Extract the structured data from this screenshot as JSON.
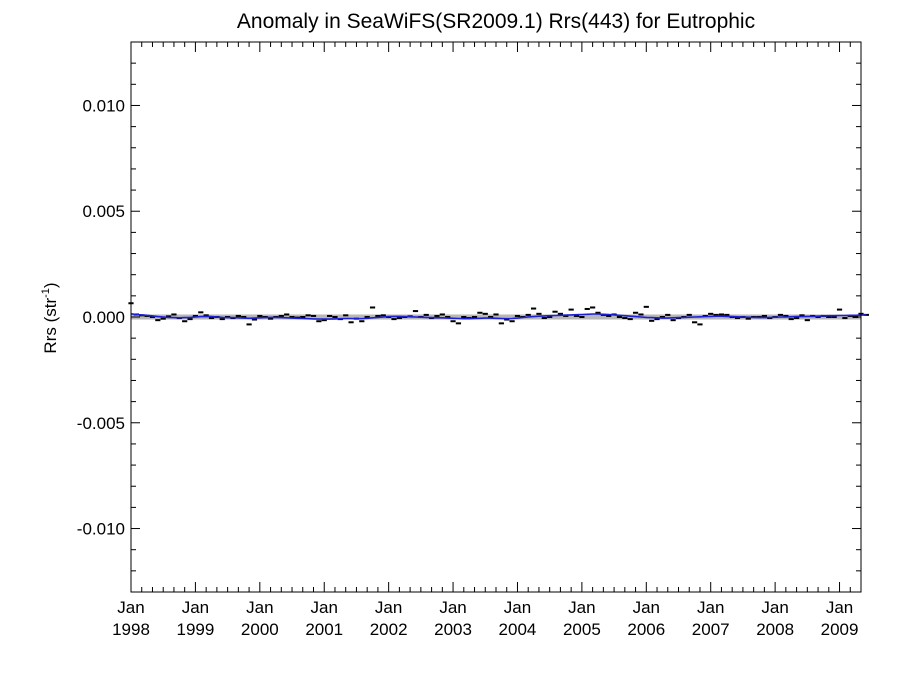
{
  "chart_data": {
    "type": "line",
    "title": "Anomaly in SeaWiFS(SR2009.1) Rrs(443) for Eutrophic",
    "ylabel_main": "Rrs (str",
    "ylabel_sup": "-1",
    "ylabel_close": ")",
    "xlabel": "",
    "ylim": [
      -0.013,
      0.013
    ],
    "xlim": [
      "1998-01",
      "2009-05"
    ],
    "yticks": [
      -0.01,
      -0.005,
      0.0,
      0.005,
      0.01
    ],
    "ytick_labels": [
      "-0.010",
      "-0.005",
      "0.000",
      "0.005",
      "0.010"
    ],
    "xtick_labels": [
      {
        "month": "Jan",
        "year": "1998"
      },
      {
        "month": "Jan",
        "year": "1999"
      },
      {
        "month": "Jan",
        "year": "2000"
      },
      {
        "month": "Jan",
        "year": "2001"
      },
      {
        "month": "Jan",
        "year": "2002"
      },
      {
        "month": "Jan",
        "year": "2003"
      },
      {
        "month": "Jan",
        "year": "2004"
      },
      {
        "month": "Jan",
        "year": "2005"
      },
      {
        "month": "Jan",
        "year": "2006"
      },
      {
        "month": "Jan",
        "year": "2007"
      },
      {
        "month": "Jan",
        "year": "2008"
      },
      {
        "month": "Jan",
        "year": "2009"
      }
    ],
    "grid": false,
    "zero_band": [
      -0.00012,
      0.00012
    ],
    "colors": {
      "monthly": "#000000",
      "smoothed": "#1f1fd6",
      "zero_band": "#b8b8b8"
    },
    "series": [
      {
        "style": "monthly-dashes",
        "start": "1998-01",
        "values": [
          0.00065,
          0.00012,
          8e-05,
          5e-05,
          0.0,
          -0.00015,
          -8e-05,
          3e-05,
          0.00012,
          -5e-05,
          -0.0002,
          -0.0001,
          5e-05,
          0.00022,
          8e-05,
          -5e-05,
          0.0,
          -0.0001,
          0.0,
          -5e-05,
          5e-05,
          0.0,
          -0.00035,
          -0.00012,
          5e-05,
          0.0,
          -8e-05,
          0.0,
          5e-05,
          0.00012,
          0.0,
          -3e-05,
          0.0,
          8e-05,
          5e-05,
          -0.0002,
          -0.00015,
          5e-05,
          0.0,
          -0.0001,
          8e-05,
          -0.00025,
          -8e-05,
          -0.0002,
          0.0,
          0.00045,
          5e-05,
          8e-05,
          0.0,
          -0.0001,
          -5e-05,
          0.0,
          3e-05,
          0.00028,
          0.0,
          0.0001,
          -5e-05,
          5e-05,
          0.00012,
          0.0,
          -0.0002,
          -0.0003,
          0.0,
          -5e-05,
          0.0,
          0.0002,
          0.00015,
          0.0,
          0.00012,
          -0.0003,
          -0.00012,
          -0.0002,
          5e-05,
          0.0,
          0.0001,
          0.0004,
          0.00015,
          -5e-05,
          0.0,
          0.00025,
          0.00015,
          5e-05,
          0.00035,
          5e-05,
          0.0,
          0.00038,
          0.00045,
          0.0002,
          0.0001,
          5e-05,
          0.00012,
          0.0,
          -5e-05,
          -0.0001,
          0.0002,
          0.00012,
          0.00048,
          -0.00018,
          -0.0001,
          0.0,
          0.0001,
          -0.00015,
          -5e-05,
          0.0,
          0.0001,
          -0.00025,
          -0.00035,
          5e-05,
          0.00015,
          0.0001,
          0.00012,
          0.0001,
          0.0,
          -5e-05,
          0.0,
          -8e-05,
          0.0,
          0.0,
          5e-05,
          -5e-05,
          0.0,
          0.0001,
          5e-05,
          -0.0001,
          -5e-05,
          8e-05,
          -0.00015,
          5e-05,
          0.0,
          5e-05,
          0.0,
          0.0,
          0.00035,
          -5e-05,
          5e-05,
          0.0,
          0.00015,
          0.0001
        ]
      },
      {
        "style": "smoothed-line",
        "start": "1998-01",
        "values": [
          0.00015,
          0.00012,
          0.0001,
          8e-05,
          5e-05,
          2e-05,
          0.0,
          -2e-05,
          -3e-05,
          -4e-05,
          -3e-05,
          -2e-05,
          0.0,
          2e-05,
          3e-05,
          2e-05,
          0.0,
          -2e-05,
          -3e-05,
          -3e-05,
          -4e-05,
          -5e-05,
          -6e-05,
          -5e-05,
          -4e-05,
          -3e-05,
          -2e-05,
          -2e-05,
          -3e-05,
          -4e-05,
          -5e-05,
          -6e-05,
          -7e-05,
          -8e-05,
          -9e-05,
          -0.0001,
          -0.0001,
          -0.0001,
          -9e-05,
          -8e-05,
          -7e-05,
          -7e-05,
          -8e-05,
          -8e-05,
          -6e-05,
          -4e-05,
          -2e-05,
          0.0,
          2e-05,
          3e-05,
          3e-05,
          2e-05,
          1e-05,
          0.0,
          -1e-05,
          -2e-05,
          -3e-05,
          -4e-05,
          -4e-05,
          -5e-05,
          -6e-05,
          -7e-05,
          -8e-05,
          -8e-05,
          -7e-05,
          -6e-05,
          -5e-05,
          -5e-05,
          -6e-05,
          -7e-05,
          -8e-05,
          -7e-05,
          -5e-05,
          -2e-05,
          0.0,
          2e-05,
          4e-05,
          5e-05,
          6e-05,
          7e-05,
          8e-05,
          9e-05,
          0.0001,
          0.00011,
          0.00012,
          0.00013,
          0.00014,
          0.00014,
          0.00013,
          0.00012,
          0.0001,
          8e-05,
          6e-05,
          4e-05,
          2e-05,
          0.0,
          -2e-05,
          -3e-05,
          -4e-05,
          -5e-05,
          -5e-05,
          -4e-05,
          -3e-05,
          -2e-05,
          -1e-05,
          0.0,
          1e-05,
          2e-05,
          3e-05,
          4e-05,
          4e-05,
          3e-05,
          2e-05,
          1e-05,
          0.0,
          -1e-05,
          -2e-05,
          -3e-05,
          -3e-05,
          -2e-05,
          -1e-05,
          0.0,
          0.0,
          1e-05,
          2e-05,
          2e-05,
          3e-05,
          3e-05,
          4e-05,
          5e-05,
          6e-05,
          6e-05,
          7e-05,
          7e-05,
          8e-05,
          8e-05,
          9e-05,
          0.0001
        ]
      }
    ]
  }
}
